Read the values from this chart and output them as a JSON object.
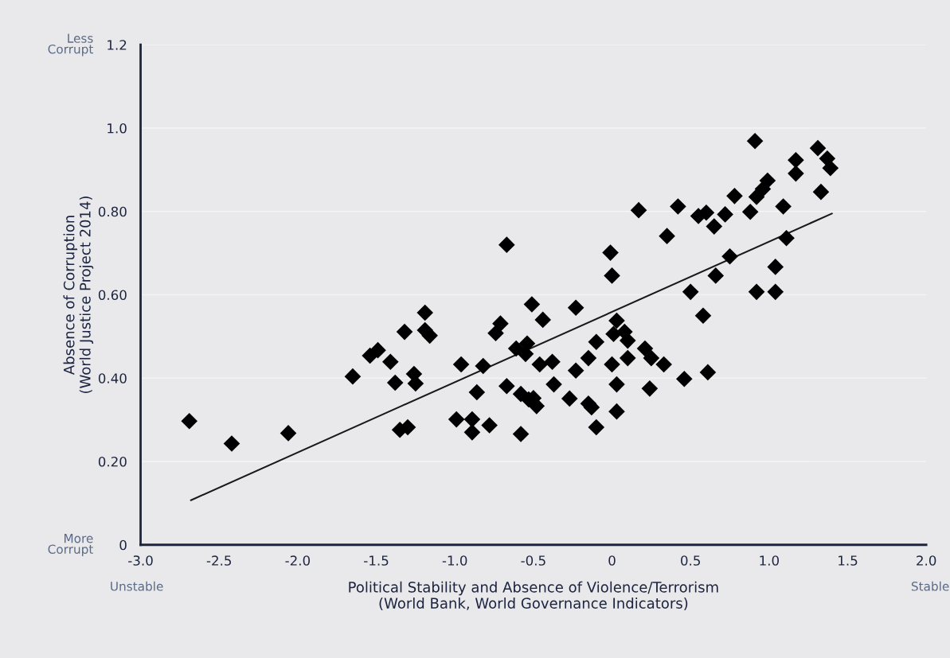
{
  "chart_data": {
    "type": "scatter",
    "xlabel": "Political Stability and Absence of Violence/Terrorism\n(World Bank, World Governance Indicators)",
    "ylabel": "Absence of Corruption\n(World Justice Project 2014)",
    "annotations": [
      "Less\nCorrupt",
      "More\nCorrupt",
      "Unstable",
      "Stable"
    ],
    "xlim": [
      -3.0,
      2.0
    ],
    "ylim": [
      0,
      1.2
    ],
    "xticks": [
      {
        "value": -3.0,
        "label": "-3.0"
      },
      -2.5,
      {
        "value": -2.0,
        "label": "-2.0"
      },
      -1.5,
      {
        "value": -1.0,
        "label": "-1.0"
      },
      -0.5,
      0,
      0.5,
      {
        "value": 1.0,
        "label": "1.0"
      },
      1.5,
      {
        "value": 2.0,
        "label": "2.0"
      }
    ],
    "yticks": [
      0,
      {
        "value": 0.2,
        "label": "0.20"
      },
      {
        "value": 0.4,
        "label": "0.40"
      },
      {
        "value": 0.6,
        "label": "0.60"
      },
      {
        "value": 0.8,
        "label": "0.80"
      },
      {
        "value": 1.0,
        "label": "1.0"
      },
      1.2
    ],
    "grid": "y",
    "series": [
      {
        "color": "#000000",
        "marker": "diamond",
        "x": [
          -2.69,
          -2.42,
          -2.06,
          -1.65,
          -1.54,
          -1.49,
          -1.41,
          -1.38,
          -1.32,
          -1.19,
          -1.19,
          -1.16,
          -1.26,
          -1.25,
          -1.35,
          -1.3,
          -0.67,
          -0.51,
          -0.44,
          -0.71,
          -0.74,
          -0.96,
          -0.82,
          -0.61,
          -0.54,
          -0.55,
          -0.46,
          -0.38,
          -0.23,
          -0.86,
          -0.67,
          -0.58,
          -0.53,
          -0.48,
          -0.5,
          -0.37,
          -0.27,
          -0.23,
          -0.15,
          -0.1,
          -0.15,
          -0.13,
          -0.1,
          0.03,
          0.01,
          0.08,
          0.1,
          0.0,
          0.1,
          0.03,
          0.03,
          -0.01,
          0.0,
          0.21,
          0.25,
          0.33,
          0.24,
          0.46,
          0.61,
          0.35,
          -0.99,
          -0.89,
          -0.89,
          -0.78,
          -0.58,
          0.5,
          0.58,
          0.66,
          0.75,
          0.91,
          1.31,
          1.37,
          1.39,
          1.17,
          1.17,
          1.33,
          0.99,
          0.96,
          0.92,
          0.88,
          0.78,
          1.09,
          0.17,
          0.42,
          0.55,
          0.6,
          0.65,
          0.72,
          1.11,
          1.04,
          0.92,
          1.04
        ],
        "values": [
          0.297,
          0.243,
          0.268,
          0.404,
          0.454,
          0.467,
          0.439,
          0.389,
          0.511,
          0.557,
          0.515,
          0.502,
          0.41,
          0.387,
          0.276,
          0.282,
          0.72,
          0.577,
          0.54,
          0.531,
          0.508,
          0.433,
          0.429,
          0.471,
          0.483,
          0.458,
          0.433,
          0.439,
          0.569,
          0.366,
          0.381,
          0.362,
          0.349,
          0.333,
          0.352,
          0.385,
          0.351,
          0.418,
          0.448,
          0.487,
          0.339,
          0.33,
          0.282,
          0.538,
          0.506,
          0.511,
          0.49,
          0.433,
          0.448,
          0.385,
          0.32,
          0.701,
          0.646,
          0.471,
          0.448,
          0.433,
          0.375,
          0.398,
          0.414,
          0.741,
          0.301,
          0.301,
          0.27,
          0.287,
          0.266,
          0.607,
          0.55,
          0.646,
          0.692,
          0.969,
          0.952,
          0.927,
          0.904,
          0.923,
          0.891,
          0.847,
          0.874,
          0.854,
          0.835,
          0.799,
          0.837,
          0.812,
          0.803,
          0.812,
          0.789,
          0.797,
          0.764,
          0.793,
          0.736,
          0.667,
          0.607,
          0.607
        ]
      },
      {
        "type": "line",
        "color": "#1a1a1a",
        "line_style": "solid",
        "marker": "none",
        "x": [
          -2.68,
          1.4
        ],
        "values": [
          0.107,
          0.795
        ]
      }
    ]
  }
}
